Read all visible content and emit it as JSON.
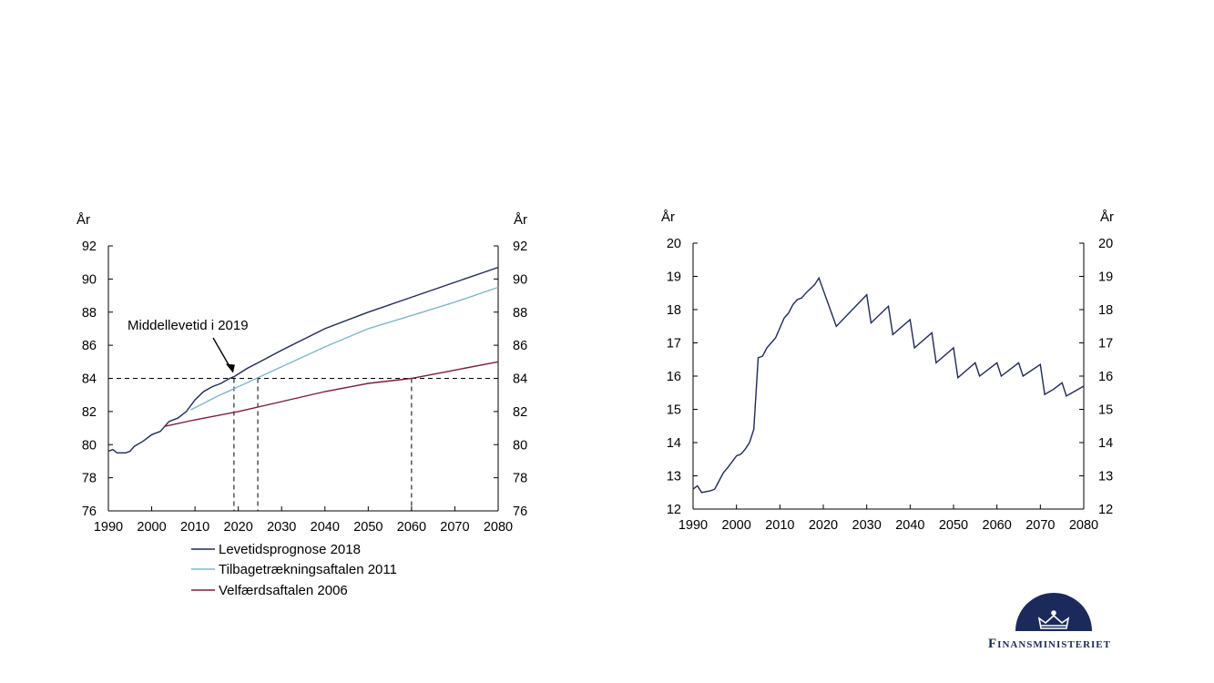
{
  "colors": {
    "levetid": "#1f2a55",
    "tilbage": "#7fb6cc",
    "velfaerd": "#7a1c3e",
    "axis": "#000000",
    "logo": "#1b2a5a"
  },
  "chart_data": [
    {
      "type": "line",
      "left_unit": "År",
      "right_unit": "År",
      "xlim": [
        1990,
        2080
      ],
      "ylim": [
        76,
        92
      ],
      "xticks": [
        1990,
        2000,
        2010,
        2020,
        2030,
        2040,
        2050,
        2060,
        2070,
        2080
      ],
      "yticks": [
        76,
        78,
        80,
        82,
        84,
        86,
        88,
        90,
        92
      ],
      "annotation": {
        "text": "Middellevetid i 2019",
        "x": 2019,
        "y": 84
      },
      "reference_lines": {
        "y": 84,
        "x": [
          2019,
          2024.5,
          2060
        ]
      },
      "legend": {
        "position": "bottom"
      },
      "series": [
        {
          "name": "Levetidsprognose 2018",
          "color_key": "levetid",
          "points": [
            [
              1990,
              79.6
            ],
            [
              1991,
              79.7
            ],
            [
              1992,
              79.5
            ],
            [
              1994,
              79.5
            ],
            [
              1995,
              79.6
            ],
            [
              1996,
              79.9
            ],
            [
              1998,
              80.2
            ],
            [
              2000,
              80.6
            ],
            [
              2002,
              80.8
            ],
            [
              2004,
              81.4
            ],
            [
              2006,
              81.6
            ],
            [
              2008,
              82.0
            ],
            [
              2010,
              82.7
            ],
            [
              2012,
              83.2
            ],
            [
              2014,
              83.5
            ],
            [
              2016,
              83.7
            ],
            [
              2018,
              84.0
            ],
            [
              2019,
              84.1
            ],
            [
              2022,
              84.6
            ],
            [
              2025,
              85.0
            ],
            [
              2030,
              85.7
            ],
            [
              2040,
              87.0
            ],
            [
              2050,
              88.0
            ],
            [
              2060,
              88.9
            ],
            [
              2070,
              89.8
            ],
            [
              2080,
              90.7
            ]
          ]
        },
        {
          "name": "Tilbagetrækningsaftalen 2011",
          "color_key": "tilbage",
          "points": [
            [
              2009,
              82.1
            ],
            [
              2015,
              82.9
            ],
            [
              2020,
              83.5
            ],
            [
              2025,
              84.1
            ],
            [
              2030,
              84.7
            ],
            [
              2040,
              85.9
            ],
            [
              2050,
              87.0
            ],
            [
              2060,
              87.8
            ],
            [
              2070,
              88.6
            ],
            [
              2080,
              89.5
            ]
          ]
        },
        {
          "name": "Velfærdsaftalen 2006",
          "color_key": "velfaerd",
          "points": [
            [
              2003,
              81.1
            ],
            [
              2010,
              81.5
            ],
            [
              2020,
              82.0
            ],
            [
              2030,
              82.6
            ],
            [
              2040,
              83.2
            ],
            [
              2050,
              83.7
            ],
            [
              2060,
              84.0
            ],
            [
              2070,
              84.5
            ],
            [
              2080,
              85.0
            ]
          ]
        }
      ]
    },
    {
      "type": "line",
      "left_unit": "År",
      "right_unit": "År",
      "xlim": [
        1990,
        2080
      ],
      "ylim": [
        12,
        20
      ],
      "xticks": [
        1990,
        2000,
        2010,
        2020,
        2030,
        2040,
        2050,
        2060,
        2070,
        2080
      ],
      "yticks": [
        12,
        13,
        14,
        15,
        16,
        17,
        18,
        19,
        20
      ],
      "series": [
        {
          "color_key": "levetid",
          "points": [
            [
              1990,
              12.6
            ],
            [
              1991,
              12.7
            ],
            [
              1992,
              12.5
            ],
            [
              1994,
              12.55
            ],
            [
              1995,
              12.6
            ],
            [
              1996,
              12.85
            ],
            [
              1997,
              13.1
            ],
            [
              1998,
              13.25
            ],
            [
              2000,
              13.6
            ],
            [
              2001,
              13.65
            ],
            [
              2002,
              13.8
            ],
            [
              2003,
              14.0
            ],
            [
              2004,
              14.4
            ],
            [
              2005,
              16.55
            ],
            [
              2006,
              16.6
            ],
            [
              2007,
              16.85
            ],
            [
              2008,
              17.0
            ],
            [
              2009,
              17.15
            ],
            [
              2010,
              17.45
            ],
            [
              2011,
              17.75
            ],
            [
              2012,
              17.9
            ],
            [
              2013,
              18.15
            ],
            [
              2014,
              18.3
            ],
            [
              2015,
              18.35
            ],
            [
              2016,
              18.5
            ],
            [
              2018,
              18.75
            ],
            [
              2019,
              18.95
            ],
            [
              2023,
              17.5
            ],
            [
              2030,
              18.45
            ],
            [
              2031,
              17.6
            ],
            [
              2035,
              18.1
            ],
            [
              2036,
              17.25
            ],
            [
              2040,
              17.7
            ],
            [
              2041,
              16.85
            ],
            [
              2045,
              17.3
            ],
            [
              2046,
              16.4
            ],
            [
              2050,
              16.85
            ],
            [
              2051,
              15.95
            ],
            [
              2055,
              16.4
            ],
            [
              2056,
              16.0
            ],
            [
              2060,
              16.4
            ],
            [
              2061,
              16.0
            ],
            [
              2065,
              16.4
            ],
            [
              2066,
              16.0
            ],
            [
              2070,
              16.35
            ],
            [
              2071,
              15.45
            ],
            [
              2073,
              15.6
            ],
            [
              2075,
              15.8
            ],
            [
              2076,
              15.4
            ],
            [
              2080,
              15.7
            ]
          ]
        }
      ]
    }
  ],
  "logo": {
    "text": "Finansministeriet"
  }
}
